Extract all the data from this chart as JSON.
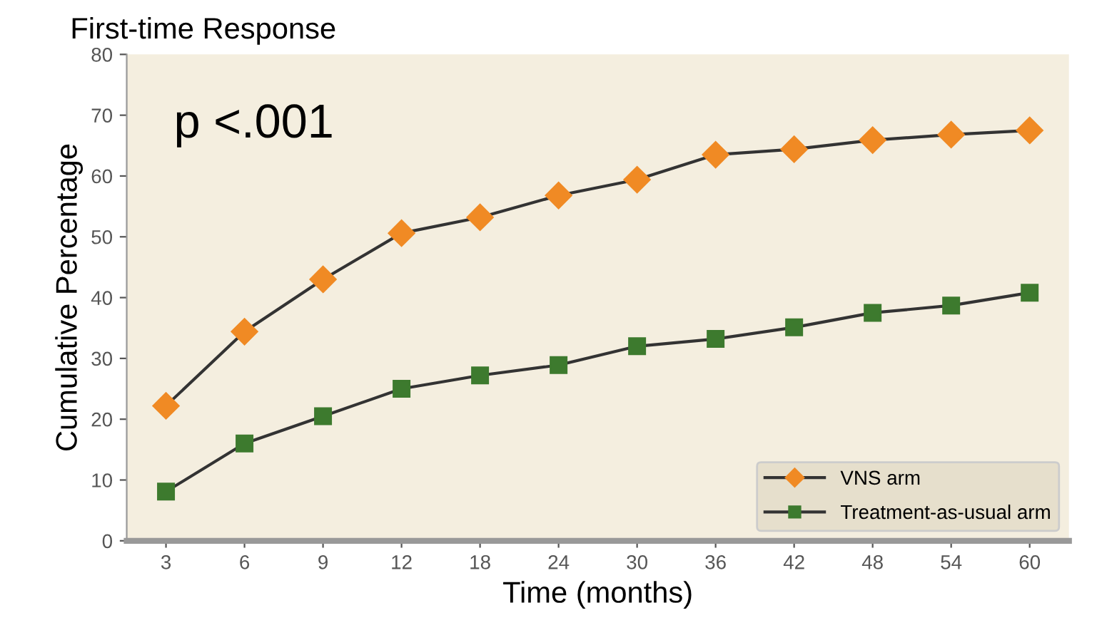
{
  "chart_data": {
    "type": "line",
    "title": "First-time Response",
    "xlabel": "Time (months)",
    "ylabel": "Cumulative Percentage",
    "annotations": [
      "p <.001"
    ],
    "categories": [
      "3",
      "6",
      "9",
      "12",
      "18",
      "24",
      "30",
      "36",
      "42",
      "48",
      "54",
      "60"
    ],
    "series": [
      {
        "name": "VNS arm",
        "color": "#f08a24",
        "marker": "diamond",
        "values": [
          22.2,
          34.4,
          43,
          50.6,
          53.2,
          56.8,
          59.4,
          63.5,
          64.4,
          65.9,
          66.8,
          67.5
        ]
      },
      {
        "name": "Treatment-as-usual arm",
        "color": "#3d7a2e",
        "marker": "square",
        "values": [
          8.1,
          16,
          20.5,
          25,
          27.2,
          28.9,
          32,
          33.2,
          35.1,
          37.5,
          38.7,
          40.8
        ]
      }
    ],
    "ylim": [
      0,
      80
    ],
    "yticks": [
      0,
      10,
      20,
      30,
      40,
      50,
      60,
      70,
      80
    ],
    "legend": "bottom right",
    "line_style": "solid",
    "grid": false
  }
}
